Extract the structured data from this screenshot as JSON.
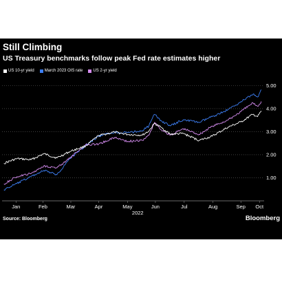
{
  "chart_data": {
    "type": "line",
    "title": "Still Climbing",
    "subtitle": "US Treasury benchmarks follow peak Fed rate estimates higher",
    "xlabel": "2022",
    "ylabel": "",
    "x_ticks": [
      "Jan",
      "Feb",
      "Mar",
      "Apr",
      "May",
      "Jun",
      "Jul",
      "Aug",
      "Sep",
      "Oct"
    ],
    "y_ticks": [
      "1.00",
      "2.00",
      "3.00",
      "4.00",
      "5.00"
    ],
    "ylim": [
      0.0,
      5.25
    ],
    "grid": "horizontal dotted",
    "legend_position": "top-left",
    "x_dates": [
      "2022-01-03",
      "2022-01-17",
      "2022-02-01",
      "2022-02-15",
      "2022-03-01",
      "2022-03-15",
      "2022-04-01",
      "2022-04-15",
      "2022-05-02",
      "2022-05-16",
      "2022-06-01",
      "2022-06-08",
      "2022-06-14",
      "2022-06-22",
      "2022-07-01",
      "2022-07-15",
      "2022-08-01",
      "2022-08-15",
      "2022-09-01",
      "2022-09-15",
      "2022-09-28",
      "2022-10-03",
      "2022-10-07"
    ],
    "series": [
      {
        "name": "US 10-yr yield",
        "color": "#ffffff",
        "values": [
          1.63,
          1.83,
          1.78,
          2.04,
          1.86,
          2.14,
          2.38,
          2.83,
          2.98,
          2.88,
          2.85,
          3.03,
          3.36,
          3.16,
          2.89,
          2.92,
          2.62,
          2.8,
          3.19,
          3.42,
          3.75,
          3.65,
          3.9
        ]
      },
      {
        "name": "March 2023 OIS rate",
        "color": "#3d7ff5",
        "values": [
          0.48,
          0.75,
          1.05,
          1.32,
          1.13,
          1.84,
          2.4,
          2.8,
          2.98,
          2.95,
          3.05,
          3.25,
          3.75,
          3.45,
          3.25,
          3.52,
          3.4,
          3.65,
          3.95,
          4.3,
          4.62,
          4.5,
          4.82
        ]
      },
      {
        "name": "US 2-yr yield",
        "color": "#d58cf0",
        "values": [
          0.73,
          1.05,
          1.18,
          1.52,
          1.43,
          1.85,
          2.44,
          2.46,
          2.75,
          2.58,
          2.62,
          2.85,
          3.4,
          3.05,
          2.85,
          3.13,
          2.88,
          3.23,
          3.5,
          3.87,
          4.25,
          4.1,
          4.31
        ]
      }
    ]
  },
  "source": "Source: Bloomberg",
  "brand": "Bloomberg"
}
